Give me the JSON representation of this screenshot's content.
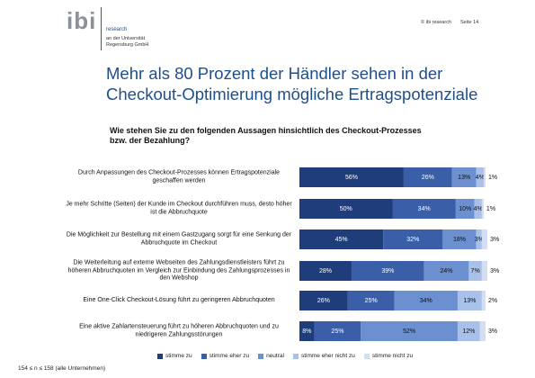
{
  "header": {
    "logo": "ibi",
    "logo_sub": "research",
    "institution": "an der Universität Regensburg GmbH",
    "copyright": "© ibi research",
    "page": "Seite 14"
  },
  "chart_data": {
    "type": "bar",
    "orientation": "horizontal",
    "stacked": true,
    "title": [
      "Mehr als 80 Prozent der Händler sehen in der",
      "Checkout-Optimierung mögliche Ertragspotenziale"
    ],
    "subtitle": [
      "Wie stehen Sie zu den folgenden Aussagen hinsichtlich des Checkout-Prozesses",
      "bzw. der Bezahlung?"
    ],
    "categories": [
      "Durch Anpassungen des Checkout-Prozesses können Ertragspotenziale geschaffen werden",
      "Je mehr Schritte (Seiten) der Kunde im Checkout durchführen muss, desto höher ist die Abbruchquote",
      "Die Möglichkeit zur Bestellung mit einem Gastzugang sorgt für eine Senkung der Abbruchquote im Checkout",
      "Die Weiterleitung auf externe Webseiten des Zahlungsdienstleisters führt zu höheren Abbruchquoten im Vergleich zur Einbindung des Zahlungsprozesses in den Webshop",
      "Eine One-Click Checkout-Lösung führt zu geringeren Abbruchquoten",
      "Eine aktive Zahlartensteuerung führt zu höheren Abbruchquoten und zu niedrigeren Zahlungsstörungen"
    ],
    "series": [
      {
        "name": "stimme zu",
        "color": "#1f3d7a",
        "values": [
          56,
          50,
          45,
          28,
          26,
          8
        ],
        "value_labels": [
          "56%",
          "50%",
          "45%",
          "28%",
          "26%",
          "8%"
        ]
      },
      {
        "name": "stimme eher zu",
        "color": "#3a5fa8",
        "values": [
          26,
          34,
          32,
          39,
          25,
          25
        ],
        "value_labels": [
          "26%",
          "34%",
          "32%",
          "39%",
          "25%",
          "25%"
        ]
      },
      {
        "name": "neutral",
        "color": "#6b8fcf",
        "values": [
          13,
          10,
          18,
          24,
          34,
          52
        ],
        "value_labels": [
          "13%",
          "10%",
          "18%",
          "24%",
          "34%",
          "52%"
        ]
      },
      {
        "name": "stimme eher nicht zu",
        "color": "#a9c0e8",
        "values": [
          4,
          4,
          3,
          7,
          13,
          12
        ],
        "value_labels": [
          "4%",
          "4%",
          "3%",
          "7%",
          "13%",
          "12%"
        ]
      },
      {
        "name": "stimme nicht zu",
        "color": "#d3def3",
        "values": [
          1,
          1,
          3,
          3,
          2,
          3
        ],
        "value_labels": [
          "1%",
          "1%",
          "3%",
          "3%",
          "2%",
          "3%"
        ]
      }
    ],
    "xlim": [
      0,
      100
    ],
    "legend": "bottom",
    "note": "154 ≤ n ≤ 158 (alle Unternehmen)"
  }
}
